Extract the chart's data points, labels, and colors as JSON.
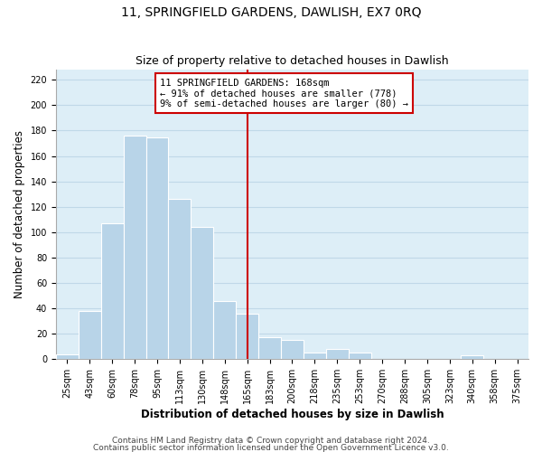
{
  "title": "11, SPRINGFIELD GARDENS, DAWLISH, EX7 0RQ",
  "subtitle": "Size of property relative to detached houses in Dawlish",
  "xlabel": "Distribution of detached houses by size in Dawlish",
  "ylabel": "Number of detached properties",
  "bar_labels": [
    "25sqm",
    "43sqm",
    "60sqm",
    "78sqm",
    "95sqm",
    "113sqm",
    "130sqm",
    "148sqm",
    "165sqm",
    "183sqm",
    "200sqm",
    "218sqm",
    "235sqm",
    "253sqm",
    "270sqm",
    "288sqm",
    "305sqm",
    "323sqm",
    "340sqm",
    "358sqm",
    "375sqm"
  ],
  "bar_values": [
    4,
    38,
    107,
    176,
    175,
    126,
    104,
    46,
    36,
    17,
    15,
    5,
    8,
    5,
    0,
    0,
    0,
    0,
    3,
    0,
    0
  ],
  "bar_width": 1.0,
  "bar_color": "#b8d4e8",
  "bar_edge_color": "#ffffff",
  "bar_edge_width": 0.8,
  "vline_x_index": 8,
  "vline_color": "#cc0000",
  "annotation_line1": "11 SPRINGFIELD GARDENS: 168sqm",
  "annotation_line2": "← 91% of detached houses are smaller (778)",
  "annotation_line3": "9% of semi-detached houses are larger (80) →",
  "annotation_box_color": "#ffffff",
  "annotation_box_edge_color": "#cc0000",
  "ylim": [
    0,
    228
  ],
  "yticks": [
    0,
    20,
    40,
    60,
    80,
    100,
    120,
    140,
    160,
    180,
    200,
    220
  ],
  "footer_line1": "Contains HM Land Registry data © Crown copyright and database right 2024.",
  "footer_line2": "Contains public sector information licensed under the Open Government Licence v3.0.",
  "fig_bg_color": "#ffffff",
  "plot_bg_color": "#ddeef7",
  "grid_color": "#c0d8e8",
  "title_fontsize": 10,
  "subtitle_fontsize": 9,
  "axis_label_fontsize": 8.5,
  "tick_fontsize": 7,
  "annotation_fontsize": 7.5,
  "footer_fontsize": 6.5
}
